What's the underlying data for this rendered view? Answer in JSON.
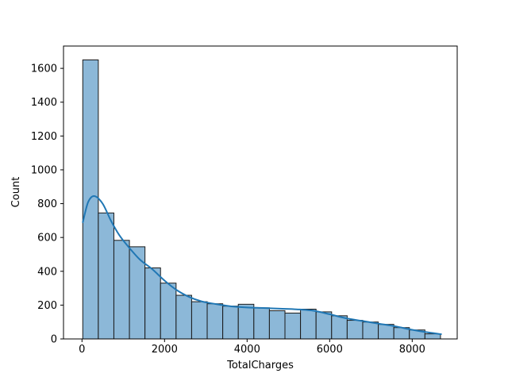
{
  "figure": {
    "background": "#ffffff"
  },
  "chart_data": {
    "type": "bar",
    "subtype": "histogram_with_kde",
    "title": "",
    "xlabel": "TotalCharges",
    "ylabel": "Count",
    "xlim": [
      -448,
      9090
    ],
    "ylim": [
      0,
      1732
    ],
    "xticks": [
      0,
      2000,
      4000,
      6000,
      8000
    ],
    "yticks": [
      0,
      200,
      400,
      600,
      800,
      1000,
      1200,
      1400,
      1600
    ],
    "grid": false,
    "legend_position": "none",
    "bins": {
      "start": 18.8,
      "width": 376.8,
      "count": 23
    },
    "bar_counts": [
      1650,
      745,
      583,
      545,
      420,
      330,
      258,
      220,
      208,
      194,
      205,
      184,
      167,
      153,
      176,
      160,
      137,
      110,
      100,
      86,
      67,
      53,
      30
    ],
    "kde_points": {
      "x": [
        20,
        150,
        300,
        500,
        700,
        900,
        1100,
        1400,
        1700,
        2000,
        2300,
        2600,
        2900,
        3200,
        3600,
        4000,
        4400,
        4800,
        5200,
        5600,
        6000,
        6400,
        6800,
        7200,
        7600,
        8000,
        8400,
        8700
      ],
      "y": [
        690,
        810,
        845,
        800,
        700,
        615,
        552,
        470,
        413,
        345,
        288,
        248,
        222,
        208,
        193,
        186,
        183,
        179,
        175,
        167,
        146,
        122,
        106,
        90,
        74,
        54,
        38,
        28
      ]
    },
    "colors": {
      "bar_fill": "#8cb8d8",
      "bar_edge": "#1a1a1a",
      "kde_line": "#2077b4",
      "axis": "#000000",
      "tick_text": "#000000"
    }
  }
}
